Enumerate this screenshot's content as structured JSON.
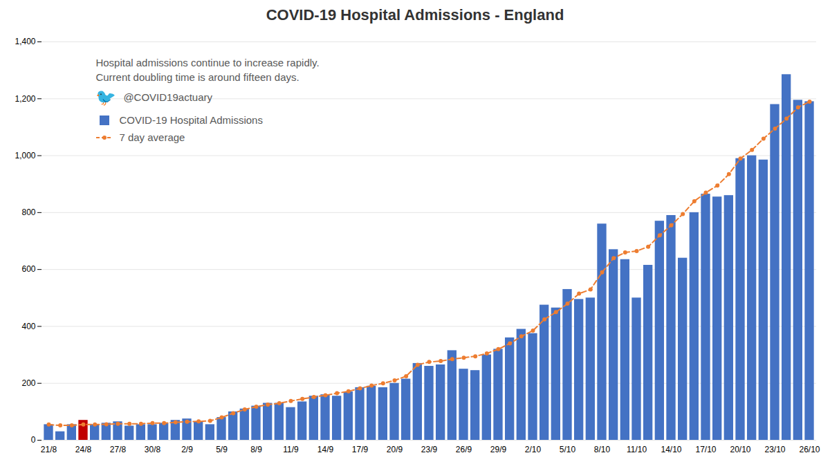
{
  "chart_data": {
    "type": "bar",
    "title": "COVID-19 Hospital Admissions - England",
    "categories": [
      "21/8",
      null,
      null,
      "24/8",
      null,
      null,
      "27/8",
      null,
      null,
      "30/8",
      null,
      null,
      "2/9",
      null,
      null,
      "5/9",
      null,
      null,
      "8/9",
      null,
      null,
      "11/9",
      null,
      null,
      "14/9",
      null,
      null,
      "17/9",
      null,
      null,
      "20/9",
      null,
      null,
      "23/9",
      null,
      null,
      "26/9",
      null,
      null,
      "29/9",
      null,
      null,
      "2/10",
      null,
      null,
      "5/10",
      null,
      null,
      "8/10",
      null,
      null,
      "11/10",
      null,
      null,
      "14/10",
      null,
      null,
      "17/10",
      null,
      null,
      "20/10",
      null,
      null,
      "23/10",
      null,
      null,
      "26/10"
    ],
    "series": [
      {
        "name": "COVID-19 Hospital Admissions",
        "type": "bar",
        "color": "#4472C4",
        "colors": [
          "#4472C4",
          "#4472C4",
          "#4472C4",
          "#C00000",
          "#4472C4",
          "#4472C4",
          "#4472C4",
          "#4472C4",
          "#4472C4",
          "#4472C4",
          "#4472C4",
          "#4472C4",
          "#4472C4",
          "#4472C4",
          "#4472C4",
          "#4472C4",
          "#4472C4",
          "#4472C4",
          "#4472C4",
          "#4472C4",
          "#4472C4",
          "#4472C4",
          "#4472C4",
          "#4472C4",
          "#4472C4",
          "#4472C4",
          "#4472C4",
          "#4472C4",
          "#4472C4",
          "#4472C4",
          "#4472C4",
          "#4472C4",
          "#4472C4",
          "#4472C4",
          "#4472C4",
          "#4472C4",
          "#4472C4",
          "#4472C4",
          "#4472C4",
          "#4472C4",
          "#4472C4",
          "#4472C4",
          "#4472C4",
          "#4472C4",
          "#4472C4",
          "#4472C4",
          "#4472C4",
          "#4472C4",
          "#4472C4",
          "#4472C4",
          "#4472C4",
          "#4472C4",
          "#4472C4",
          "#4472C4",
          "#4472C4",
          "#4472C4",
          "#4472C4",
          "#4472C4",
          "#4472C4",
          "#4472C4",
          "#4472C4",
          "#4472C4",
          "#4472C4",
          "#4472C4",
          "#4472C4",
          "#4472C4",
          "#4472C4"
        ],
        "values": [
          55,
          30,
          55,
          70,
          55,
          60,
          65,
          50,
          55,
          55,
          60,
          70,
          75,
          65,
          55,
          80,
          100,
          110,
          120,
          130,
          130,
          115,
          135,
          155,
          160,
          155,
          170,
          185,
          190,
          185,
          200,
          215,
          270,
          260,
          265,
          315,
          250,
          245,
          300,
          320,
          360,
          390,
          375,
          475,
          465,
          530,
          495,
          500,
          760,
          670,
          635,
          500,
          615,
          770,
          790,
          640,
          800,
          865,
          855,
          860,
          990,
          1000,
          985,
          1180,
          1285,
          1195,
          1190
        ]
      },
      {
        "name": "7 day average",
        "type": "line",
        "color": "#ED7D31",
        "line_style": "dashed",
        "marker": "circle",
        "values": [
          55,
          52,
          52,
          55,
          55,
          56,
          58,
          58,
          58,
          60,
          60,
          63,
          65,
          66,
          68,
          80,
          95,
          108,
          118,
          125,
          130,
          138,
          145,
          152,
          158,
          165,
          172,
          182,
          192,
          200,
          210,
          225,
          265,
          275,
          278,
          285,
          290,
          295,
          305,
          320,
          340,
          365,
          385,
          425,
          450,
          480,
          515,
          530,
          590,
          640,
          660,
          665,
          680,
          720,
          755,
          795,
          840,
          870,
          895,
          935,
          990,
          1020,
          1060,
          1095,
          1130,
          1170,
          1190
        ]
      }
    ],
    "ylim": [
      0,
      1400
    ],
    "yticks": [
      0,
      200,
      400,
      600,
      800,
      1000,
      1200,
      1400
    ],
    "grid": true,
    "legend": "upper left",
    "annotations": [
      {
        "text": "Hospital admissions continue to increase rapidly."
      },
      {
        "text": "Current doubling time is around fifteen days."
      },
      {
        "text": "🐦",
        "color": "#1DA1F2"
      },
      {
        "text": "@COVID19actuary"
      }
    ]
  }
}
